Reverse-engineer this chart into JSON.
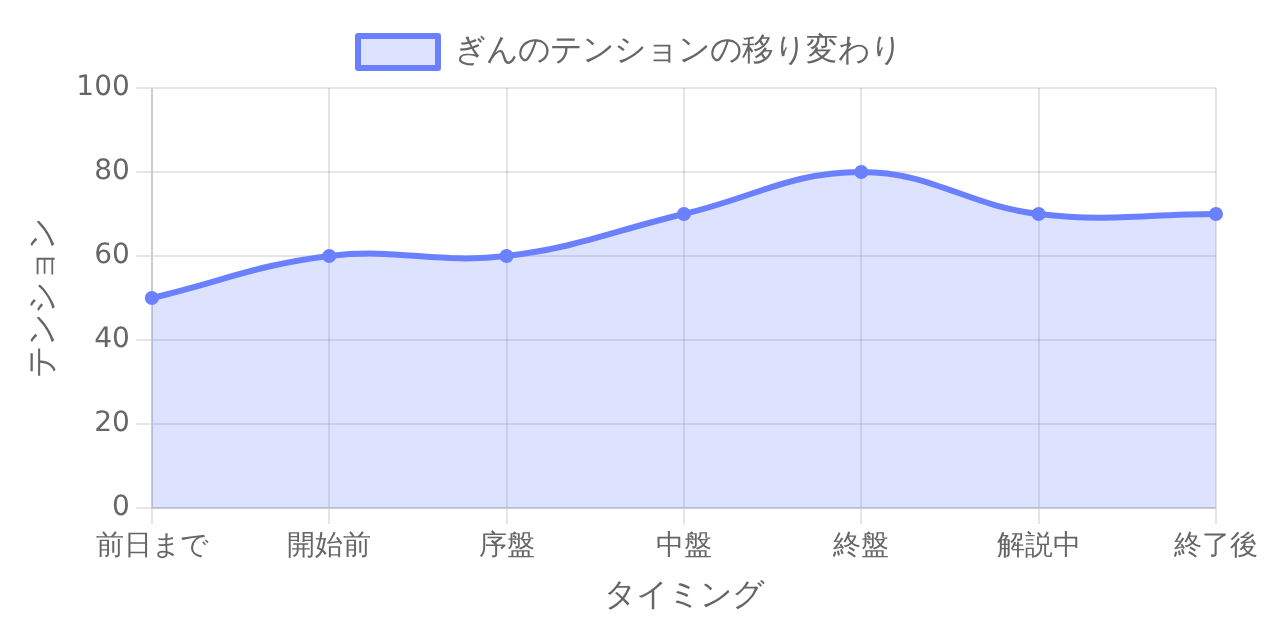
{
  "chart_data": {
    "type": "area",
    "categories": [
      "前日まで",
      "開始前",
      "序盤",
      "中盤",
      "終盤",
      "解説中",
      "終了後"
    ],
    "series": [
      {
        "name": "ぎんのテンションの移り変わり",
        "color": "#6b80ff",
        "values": [
          50,
          60,
          60,
          70,
          80,
          70,
          70
        ]
      }
    ],
    "xlabel": "タイミング",
    "ylabel": "テンション",
    "ylim": [
      0,
      100
    ],
    "yticks": [
      0,
      20,
      40,
      60,
      80,
      100
    ],
    "grid": true,
    "legend": "top",
    "marker": "circle"
  }
}
